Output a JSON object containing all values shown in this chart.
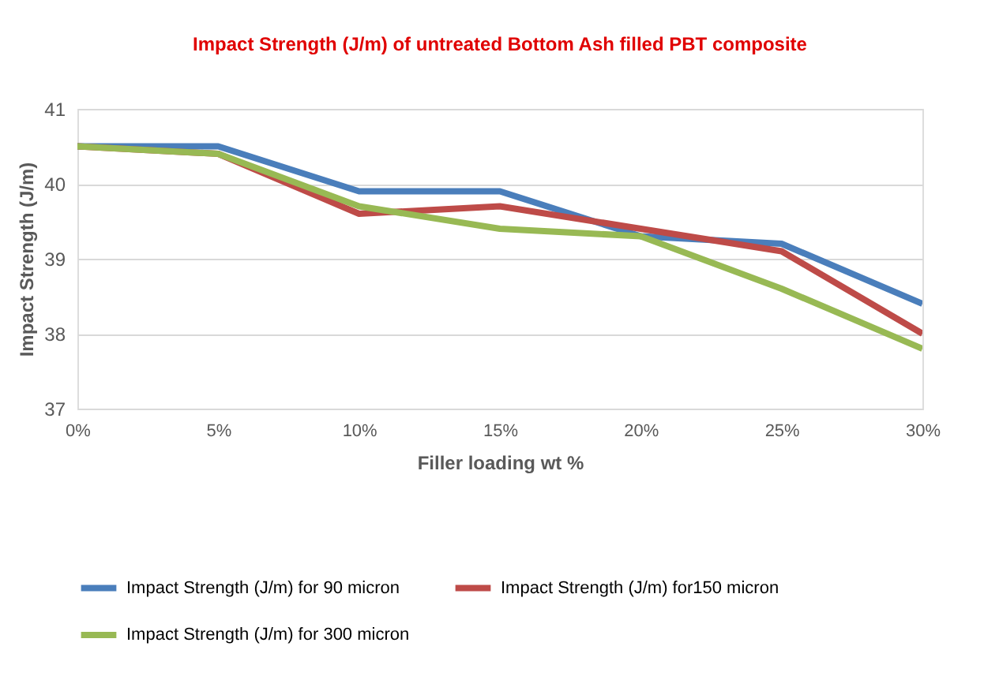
{
  "chart_data": {
    "type": "line",
    "title": "Impact Strength (J/m) of untreated Bottom Ash filled PBT composite",
    "xlabel": "Filler  loading wt %",
    "ylabel": "Impact Strength (J/m)",
    "categories": [
      "0%",
      "5%",
      "10%",
      "15%",
      "20%",
      "25%",
      "30%"
    ],
    "series": [
      {
        "name": "Impact Strength (J/m) for 90 micron",
        "color": "#4a7ebb",
        "values": [
          40.5,
          40.5,
          39.9,
          39.9,
          39.3,
          39.2,
          38.4
        ]
      },
      {
        "name": "Impact Strength (J/m) for150 micron",
        "color": "#be4b48",
        "values": [
          40.5,
          40.4,
          39.6,
          39.7,
          39.4,
          39.1,
          38.0
        ]
      },
      {
        "name": "Impact Strength (J/m) for 300 micron",
        "color": "#98b954",
        "values": [
          40.5,
          40.4,
          39.7,
          39.4,
          39.3,
          38.6,
          37.8
        ]
      }
    ],
    "ylim": [
      37,
      41
    ],
    "yticks": [
      37,
      38,
      39,
      40,
      41
    ],
    "grid": "y",
    "legend": "bottom",
    "marker": "none",
    "line_style": "solid"
  }
}
